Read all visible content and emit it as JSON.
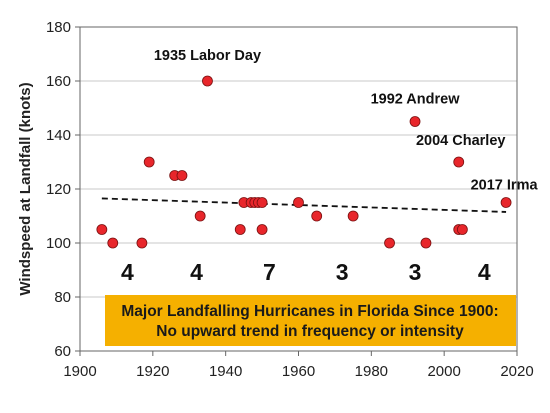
{
  "chart_data": {
    "type": "scatter",
    "title": "",
    "xlabel": "",
    "ylabel": "Windspeed at Landfall (knots)",
    "xlim": [
      1900,
      2020
    ],
    "ylim": [
      60,
      180
    ],
    "xticks": [
      1900,
      1920,
      1940,
      1960,
      1980,
      2000,
      2020
    ],
    "yticks": [
      60,
      80,
      100,
      120,
      140,
      160,
      180
    ],
    "grid": "y-major",
    "points": [
      {
        "x": 1906,
        "y": 105
      },
      {
        "x": 1909,
        "y": 100
      },
      {
        "x": 1917,
        "y": 100
      },
      {
        "x": 1919,
        "y": 130
      },
      {
        "x": 1926,
        "y": 125
      },
      {
        "x": 1928,
        "y": 125
      },
      {
        "x": 1933,
        "y": 110
      },
      {
        "x": 1935,
        "y": 160
      },
      {
        "x": 1944,
        "y": 105
      },
      {
        "x": 1945,
        "y": 115
      },
      {
        "x": 1947,
        "y": 115
      },
      {
        "x": 1948,
        "y": 115
      },
      {
        "x": 1949,
        "y": 115
      },
      {
        "x": 1950,
        "y": 115
      },
      {
        "x": 1950,
        "y": 105
      },
      {
        "x": 1960,
        "y": 115
      },
      {
        "x": 1965,
        "y": 110
      },
      {
        "x": 1975,
        "y": 110
      },
      {
        "x": 1985,
        "y": 100
      },
      {
        "x": 1992,
        "y": 145
      },
      {
        "x": 1995,
        "y": 100
      },
      {
        "x": 2004,
        "y": 130
      },
      {
        "x": 2004,
        "y": 105
      },
      {
        "x": 2005,
        "y": 105
      },
      {
        "x": 2017,
        "y": 115
      }
    ],
    "trendline": {
      "x": [
        1906,
        2017
      ],
      "y": [
        116.5,
        111.5
      ]
    },
    "annotations": [
      {
        "text": "1935 Labor Day",
        "x": 1935,
        "y": 160
      },
      {
        "text": "1992 Andrew",
        "x": 1992,
        "y": 145
      },
      {
        "text": "2004 Charley",
        "x": 2004,
        "y": 130
      },
      {
        "text": "2017 Irma",
        "x": 2017,
        "y": 115
      }
    ],
    "decade_counts": [
      {
        "label": "4",
        "x": 1913
      },
      {
        "label": "4",
        "x": 1932
      },
      {
        "label": "7",
        "x": 1952
      },
      {
        "label": "3",
        "x": 1972
      },
      {
        "label": "3",
        "x": 1992
      },
      {
        "label": "4",
        "x": 2011
      }
    ],
    "caption_lines": [
      "Major Landfalling Hurricanes in Florida Since 1900:",
      "No upward trend in frequency or intensity"
    ],
    "marker_color": "#e8262b",
    "caption_bg": "#f5b000"
  }
}
